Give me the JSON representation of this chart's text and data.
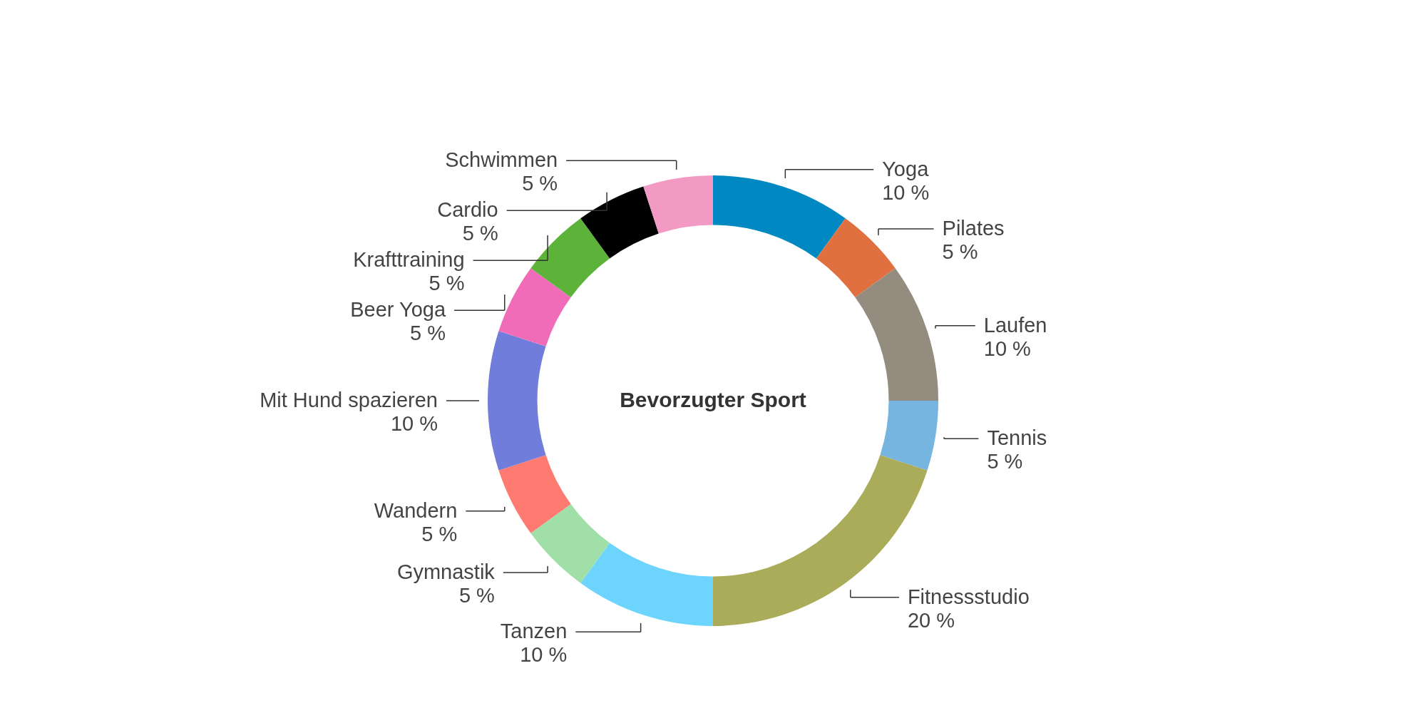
{
  "chart_data": {
    "type": "donut",
    "title": "Bevorzugter Sport",
    "categories": [
      "Yoga",
      "Pilates",
      "Laufen",
      "Tennis",
      "Fitnessstudio",
      "Tanzen",
      "Gymnastik",
      "Wandern",
      "Mit Hund spazieren",
      "Beer Yoga",
      "Krafttraining",
      "Cardio",
      "Schwimmen"
    ],
    "values": [
      10,
      5,
      10,
      5,
      20,
      10,
      5,
      5,
      10,
      5,
      5,
      5,
      5
    ],
    "value_labels": [
      "10 %",
      "5 %",
      "10 %",
      "5 %",
      "20 %",
      "10 %",
      "5 %",
      "5 %",
      "10 %",
      "5 %",
      "5 %",
      "5 %",
      "5 %"
    ],
    "colors": [
      "#0088c2",
      "#e07040",
      "#958c80",
      "#76b5e0",
      "#aaac5a",
      "#6cd4fd",
      "#a0e0a8",
      "#ff7a70",
      "#717ddb",
      "#f06cb8",
      "#5db33a",
      "#000000",
      "#f39ac4"
    ]
  }
}
